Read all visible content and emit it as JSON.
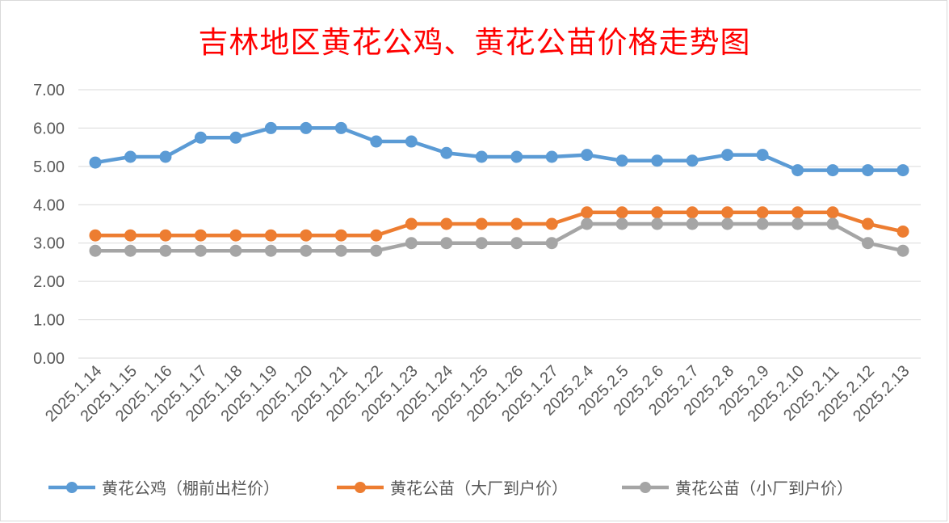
{
  "chart_data": {
    "type": "line",
    "title": "吉林地区黄花公鸡、黄花公苗价格走势图",
    "categories": [
      "2025.1.14",
      "2025.1.15",
      "2025.1.16",
      "2025.1.17",
      "2025.1.18",
      "2025.1.19",
      "2025.1.20",
      "2025.1.21",
      "2025.1.22",
      "2025.1.23",
      "2025.1.24",
      "2025.1.25",
      "2025.1.26",
      "2025.1.27",
      "2025.2.4",
      "2025.2.5",
      "2025.2.6",
      "2025.2.7",
      "2025.2.8",
      "2025.2.9",
      "2025.2.10",
      "2025.2.11",
      "2025.2.12",
      "2025.2.13"
    ],
    "series": [
      {
        "name": "黄花公鸡（棚前出栏价）",
        "color": "#5b9bd5",
        "values": [
          5.1,
          5.25,
          5.25,
          5.75,
          5.75,
          6.0,
          6.0,
          6.0,
          5.65,
          5.65,
          5.35,
          5.25,
          5.25,
          5.25,
          5.3,
          5.15,
          5.15,
          5.15,
          5.3,
          5.3,
          4.9,
          4.9,
          4.9,
          4.9
        ]
      },
      {
        "name": "黄花公苗（大厂到户价）",
        "color": "#ed7d31",
        "values": [
          3.2,
          3.2,
          3.2,
          3.2,
          3.2,
          3.2,
          3.2,
          3.2,
          3.2,
          3.5,
          3.5,
          3.5,
          3.5,
          3.5,
          3.8,
          3.8,
          3.8,
          3.8,
          3.8,
          3.8,
          3.8,
          3.8,
          3.5,
          3.3
        ]
      },
      {
        "name": "黄花公苗（小厂到户价）",
        "color": "#a5a5a5",
        "values": [
          2.8,
          2.8,
          2.8,
          2.8,
          2.8,
          2.8,
          2.8,
          2.8,
          2.8,
          3.0,
          3.0,
          3.0,
          3.0,
          3.0,
          3.5,
          3.5,
          3.5,
          3.5,
          3.5,
          3.5,
          3.5,
          3.5,
          3.0,
          2.8
        ]
      }
    ],
    "ylim": [
      0,
      7
    ],
    "yticks": [
      "0.00",
      "1.00",
      "2.00",
      "3.00",
      "4.00",
      "5.00",
      "6.00",
      "7.00"
    ],
    "grid": true,
    "legend": "bottom"
  }
}
